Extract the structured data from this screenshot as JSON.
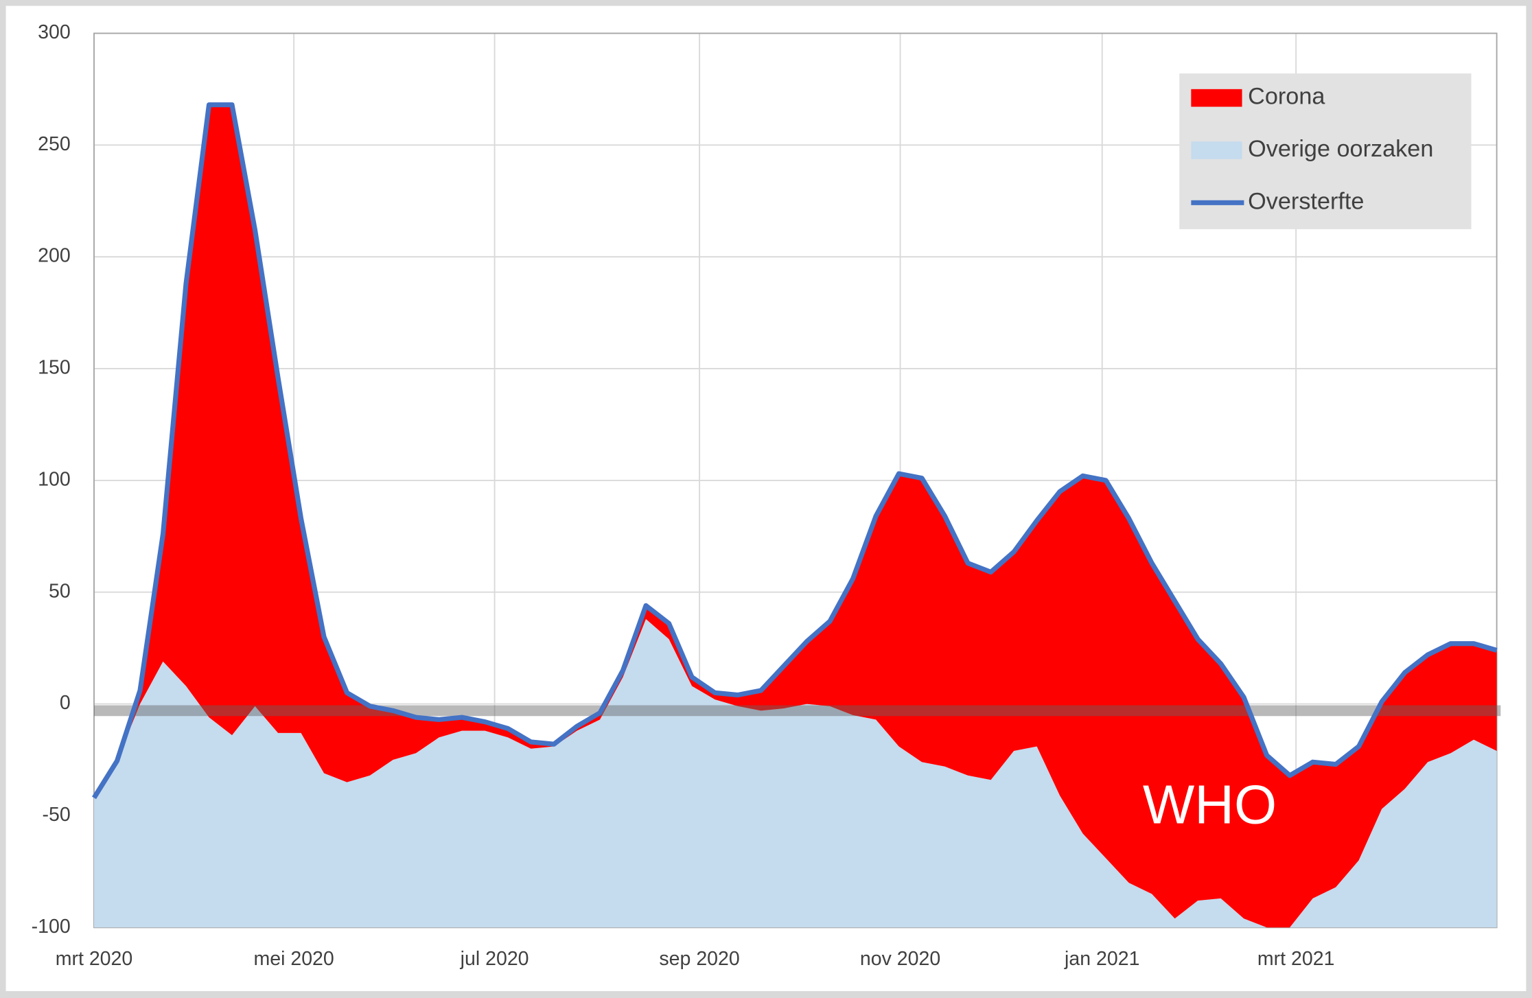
{
  "chart_data": {
    "type": "area",
    "x": [
      0,
      1,
      2,
      3,
      4,
      5,
      6,
      7,
      8,
      9,
      10,
      11,
      12,
      13,
      14,
      15,
      16,
      17,
      18,
      19,
      20,
      21,
      22,
      23,
      24,
      25,
      26,
      27,
      28,
      29,
      30,
      31,
      32,
      33,
      34,
      35,
      36,
      37,
      38,
      39,
      40,
      41,
      42,
      43,
      44,
      45,
      46,
      47,
      48,
      49,
      50,
      51,
      52,
      53,
      54,
      55,
      56,
      57,
      58,
      59,
      60,
      61
    ],
    "xlim": [
      0,
      61
    ],
    "xticks": [
      {
        "value": 0,
        "label": "mrt 2020"
      },
      {
        "value": 8.69,
        "label": "mei 2020"
      },
      {
        "value": 17.42,
        "label": "jul 2020"
      },
      {
        "value": 26.33,
        "label": "sep 2020"
      },
      {
        "value": 35.06,
        "label": "nov 2020"
      },
      {
        "value": 43.84,
        "label": "jan 2021"
      },
      {
        "value": 52.27,
        "label": "mrt 2021"
      }
    ],
    "ylim": [
      -100,
      300
    ],
    "yticks": [
      -100,
      -50,
      0,
      50,
      100,
      150,
      200,
      250,
      300
    ],
    "grid": true,
    "legend": "top-right",
    "reference_line": -3,
    "annotation": "WHO",
    "series": [
      {
        "name": "Corona",
        "style": "area",
        "color": "#ff0000",
        "values": [
          0,
          0,
          6,
          57,
          180,
          274,
          282,
          213,
          159,
          96,
          61,
          40,
          31,
          22,
          16,
          8,
          6,
          4,
          4,
          3,
          1,
          2,
          3,
          3,
          6,
          7,
          4,
          3,
          5,
          9,
          19,
          28,
          38,
          61,
          91,
          122,
          127,
          112,
          95,
          93,
          89,
          101,
          136,
          160,
          169,
          163,
          148,
          142,
          117,
          105,
          99,
          77,
          68,
          61,
          55,
          51,
          48,
          52,
          48,
          49,
          43,
          45
        ]
      },
      {
        "name": "Overige oorzaken",
        "style": "area",
        "color": "#c5dbee",
        "values": [
          -42,
          -25.5,
          0,
          19,
          8,
          -6,
          -14,
          -1,
          -13,
          -13,
          -31,
          -35,
          -32,
          -25,
          -22,
          -15,
          -12,
          -12,
          -15,
          -20,
          -19,
          -12,
          -7,
          12,
          38,
          29,
          8,
          2,
          -1,
          -3,
          -2,
          0,
          -1,
          -5,
          -7,
          -19,
          -26,
          -28,
          -32,
          -34,
          -21,
          -19,
          -41,
          -58,
          -69,
          -80,
          -85,
          -96,
          -88,
          -87,
          -96,
          -100,
          -100,
          -87,
          -82,
          -70,
          -47,
          -38,
          -26,
          -22,
          -16,
          -21
        ]
      },
      {
        "name": "Oversterfte",
        "style": "line",
        "color": "#4472c4",
        "values": [
          -42,
          -25.5,
          6,
          76,
          188,
          268,
          268,
          212,
          146,
          83,
          30,
          5,
          -1,
          -3,
          -6,
          -7,
          -6,
          -8,
          -11,
          -17,
          -18,
          -10,
          -4,
          15,
          44,
          36,
          12,
          5,
          4,
          6,
          17,
          28,
          37,
          56,
          84,
          103,
          101,
          84,
          63,
          59,
          68,
          82,
          95,
          102,
          100,
          83,
          63,
          46,
          29,
          18,
          3,
          -23,
          -32,
          -26,
          -27,
          -19,
          1,
          14,
          22,
          27,
          27,
          24
        ]
      }
    ]
  }
}
